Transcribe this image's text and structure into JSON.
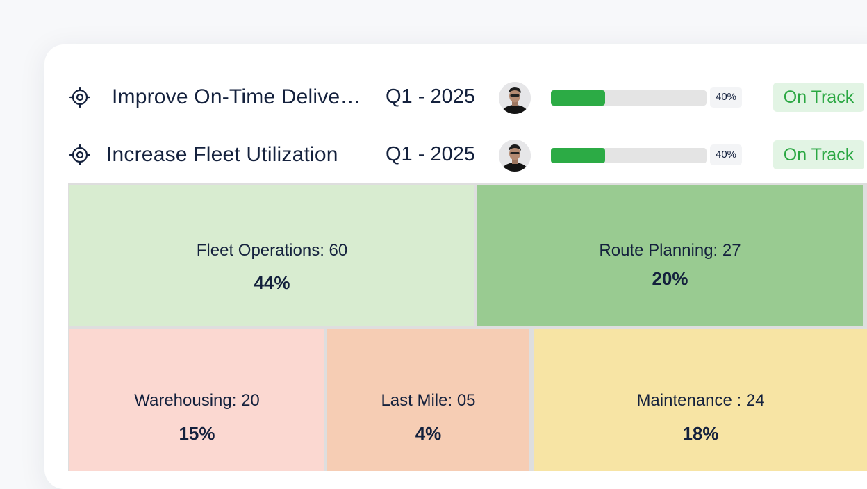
{
  "goals": [
    {
      "title": "Improve On-Time Delivery Rate",
      "quarter": "Q1 - 2025",
      "progress": 40,
      "progress_label": "40%",
      "status": "On Track",
      "icon": "target-icon"
    },
    {
      "title": "Increase Fleet Utilization",
      "quarter": "Q1 - 2025",
      "progress": 40,
      "progress_label": "40%",
      "status": "On Track",
      "icon": "target-icon"
    }
  ],
  "treemap": [
    {
      "label": "Fleet Operations: 60",
      "percent": "44%",
      "color": "#d8ecd0"
    },
    {
      "label": "Route Planning: 27",
      "percent": "20%",
      "color": "#99cb91"
    },
    {
      "label": "Warehousing: 20",
      "percent": "15%",
      "color": "#fbd8d1"
    },
    {
      "label": "Last Mile: 05",
      "percent": "4%",
      "color": "#f6cdb4"
    },
    {
      "label": "Maintenance : 24",
      "percent": "18%",
      "color": "#f7e4a4"
    }
  ],
  "colors": {
    "progress_fill": "#2cab45",
    "status_text": "#2aa742",
    "status_bg": "#e2f4e4"
  }
}
